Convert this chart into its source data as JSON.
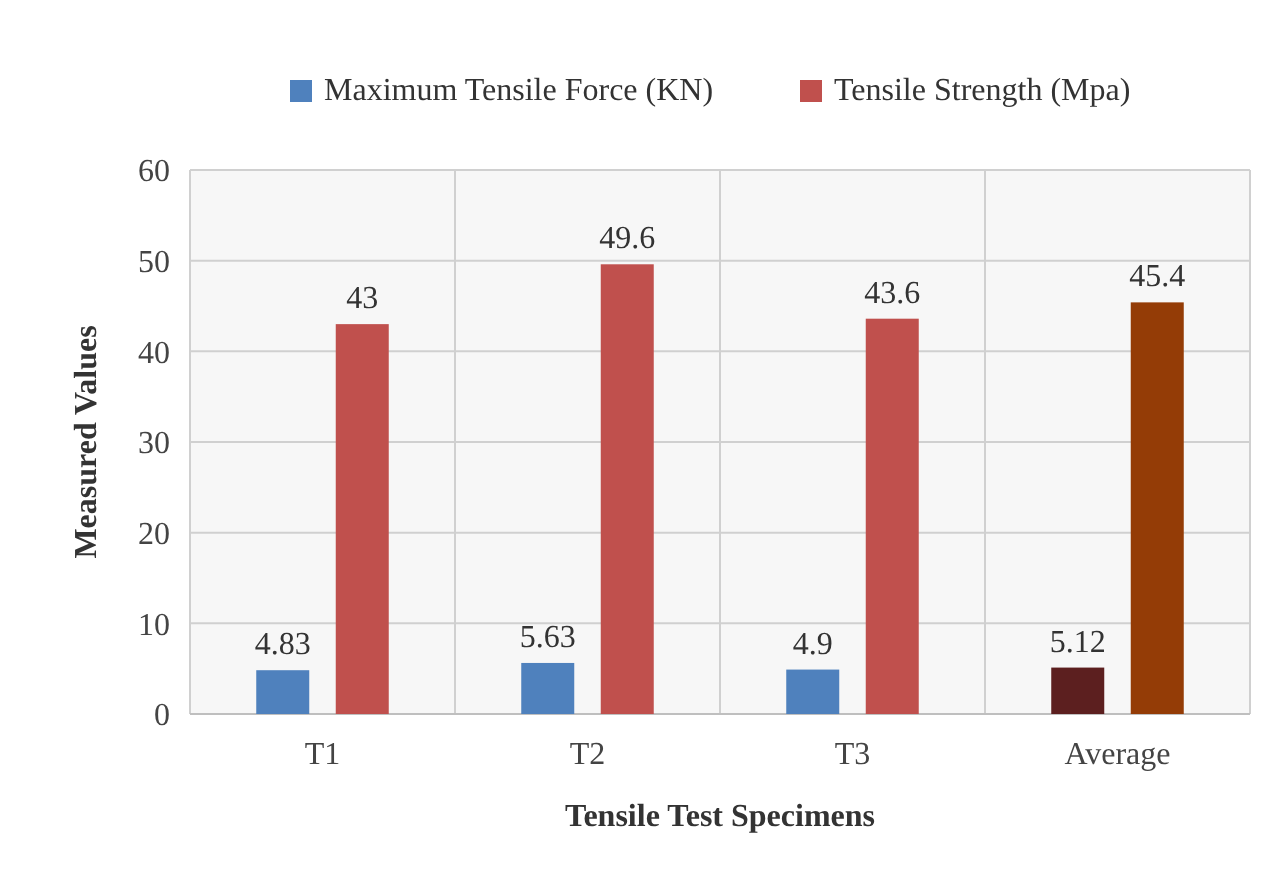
{
  "chart_data": {
    "type": "bar",
    "xlabel": "Tensile Test Specimens",
    "ylabel": "Measured Values",
    "categories": [
      "T1",
      "T2",
      "T3",
      "Average"
    ],
    "series": [
      {
        "name": "Maximum Tensile Force (KN)",
        "color": "#4f81bd",
        "colors": [
          "#4f81bd",
          "#4f81bd",
          "#4f81bd",
          "#5c1f1f"
        ],
        "values": [
          4.83,
          5.63,
          4.9,
          5.12
        ]
      },
      {
        "name": "Tensile Strength (Mpa)",
        "color": "#c0504d",
        "colors": [
          "#c0504d",
          "#c0504d",
          "#c0504d",
          "#943c06"
        ],
        "values": [
          43,
          49.6,
          43.6,
          45.4
        ]
      }
    ],
    "ylim": [
      0,
      60
    ],
    "yticks": [
      0,
      10,
      20,
      30,
      40,
      50,
      60
    ],
    "grid": true,
    "legend": "top",
    "data_labels": true
  }
}
